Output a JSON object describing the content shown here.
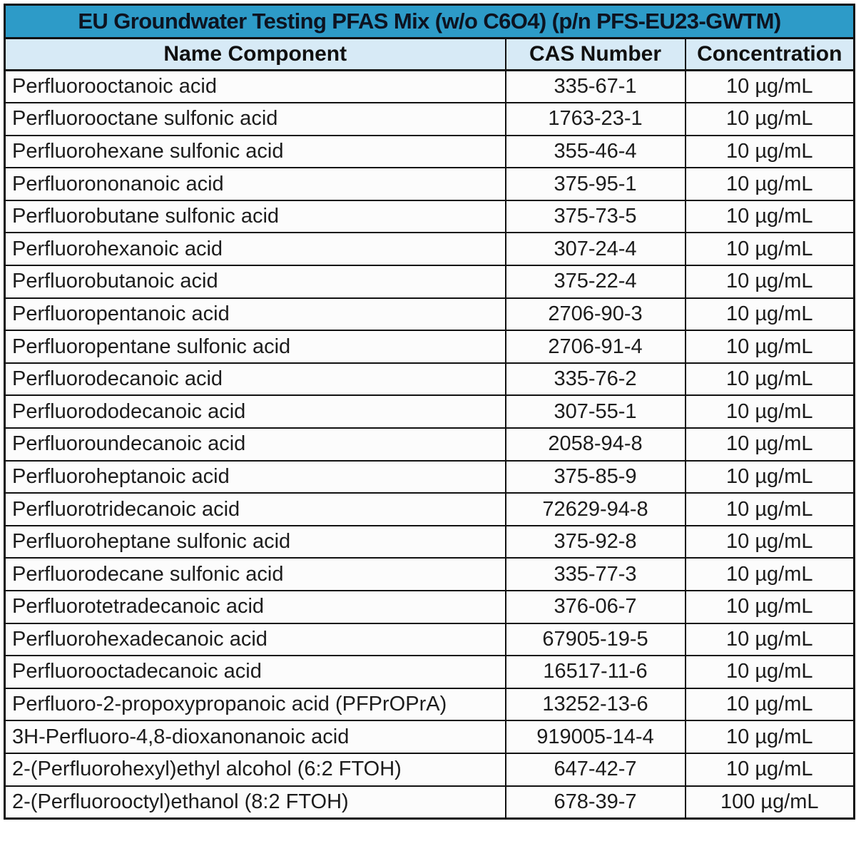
{
  "table": {
    "title": "EU Groundwater Testing PFAS Mix (w/o C6O4) (p/n PFS-EU23-GWTM)",
    "columns": [
      {
        "label": "Name Component"
      },
      {
        "label": "CAS Number"
      },
      {
        "label": "Concentration"
      }
    ],
    "rows": [
      [
        "Perfluorooctanoic acid",
        "335-67-1",
        "10 µg/mL"
      ],
      [
        "Perfluorooctane sulfonic acid",
        "1763-23-1",
        "10 µg/mL"
      ],
      [
        "Perfluorohexane sulfonic acid",
        "355-46-4",
        "10 µg/mL"
      ],
      [
        "Perfluorononanoic acid",
        "375-95-1",
        "10 µg/mL"
      ],
      [
        "Perfluorobutane sulfonic acid",
        "375-73-5",
        "10 µg/mL"
      ],
      [
        "Perfluorohexanoic acid",
        "307-24-4",
        "10 µg/mL"
      ],
      [
        "Perfluorobutanoic acid",
        "375-22-4",
        "10 µg/mL"
      ],
      [
        "Perfluoropentanoic acid",
        "2706-90-3",
        "10 µg/mL"
      ],
      [
        "Perfluoropentane sulfonic acid",
        "2706-91-4",
        "10 µg/mL"
      ],
      [
        "Perfluorodecanoic acid",
        "335-76-2",
        "10 µg/mL"
      ],
      [
        "Perfluorododecanoic acid",
        "307-55-1",
        "10 µg/mL"
      ],
      [
        "Perfluoroundecanoic acid",
        "2058-94-8",
        "10 µg/mL"
      ],
      [
        "Perfluoroheptanoic acid",
        "375-85-9",
        "10 µg/mL"
      ],
      [
        "Perfluorotridecanoic acid",
        "72629-94-8",
        "10 µg/mL"
      ],
      [
        "Perfluoroheptane sulfonic acid",
        "375-92-8",
        "10 µg/mL"
      ],
      [
        "Perfluorodecane sulfonic acid",
        "335-77-3",
        "10 µg/mL"
      ],
      [
        "Perfluorotetradecanoic acid",
        "376-06-7",
        "10 µg/mL"
      ],
      [
        "Perfluorohexadecanoic acid",
        "67905-19-5",
        "10 µg/mL"
      ],
      [
        "Perfluorooctadecanoic acid",
        "16517-11-6",
        "10 µg/mL"
      ],
      [
        "Perfluoro-2-propoxypropanoic acid (PFPrOPrA)",
        "13252-13-6",
        "10 µg/mL"
      ],
      [
        "3H-Perfluoro-4,8-dioxanonanoic acid",
        "919005-14-4",
        "10 µg/mL"
      ],
      [
        "2-(Perfluorohexyl)ethyl alcohol (6:2 FTOH)",
        "647-42-7",
        "10 µg/mL"
      ],
      [
        "2-(Perfluorooctyl)ethanol (8:2 FTOH)",
        "678-39-7",
        "100 µg/mL"
      ]
    ],
    "colors": {
      "title_bg": "#2D9BC8",
      "header_bg": "#D7EAF6",
      "row_bg": "#FCFCFC",
      "border": "#111111",
      "text": "#1C1C1C"
    }
  }
}
